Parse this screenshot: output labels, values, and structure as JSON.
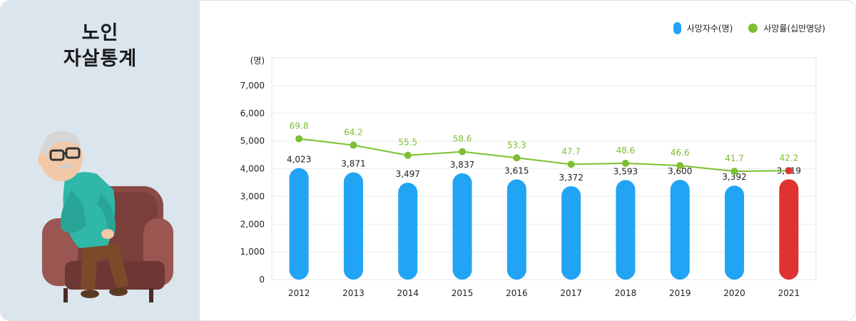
{
  "panel": {
    "title_line1": "노인",
    "title_line2": "자살통계"
  },
  "legend": {
    "deaths_label": "사망자수(명)",
    "rate_label": "사망률(십만명당)"
  },
  "colors": {
    "bar": "#22a4f5",
    "bar_highlight": "#e03232",
    "line": "#7cbf2f",
    "highlight_point": "#e03232"
  },
  "chart_data": {
    "type": "bar",
    "unit_label": "(명)",
    "categories": [
      "2012",
      "2013",
      "2014",
      "2015",
      "2016",
      "2017",
      "2018",
      "2019",
      "2020",
      "2021"
    ],
    "y_ticks": [
      "0",
      "1,000",
      "2,000",
      "3,000",
      "4,000",
      "5,000",
      "6,000",
      "7,000"
    ],
    "ylim": [
      0,
      7000
    ],
    "grid": true,
    "legend_position": "top-right",
    "highlight_index": 9,
    "series": [
      {
        "name": "사망자수(명)",
        "type": "bar",
        "values": [
          4023,
          3871,
          3497,
          3837,
          3615,
          3372,
          3593,
          3600,
          3392,
          3619
        ],
        "labels": [
          "4,023",
          "3,871",
          "3,497",
          "3,837",
          "3,615",
          "3,372",
          "3,593",
          "3,600",
          "3,392",
          "3,619"
        ]
      },
      {
        "name": "사망률(십만명당)",
        "type": "line",
        "values": [
          69.8,
          64.2,
          55.5,
          58.6,
          53.3,
          47.7,
          48.6,
          46.6,
          41.7,
          42.2
        ],
        "labels": [
          "69.8",
          "64.2",
          "55.5",
          "58.6",
          "53.3",
          "47.7",
          "48.6",
          "46.6",
          "41.7",
          "42.2"
        ]
      }
    ]
  }
}
